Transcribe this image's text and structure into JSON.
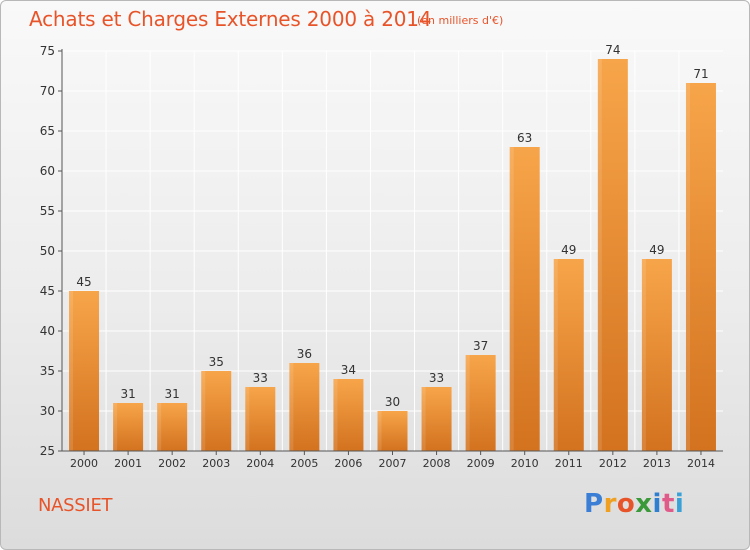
{
  "header": {
    "title": "Achats et Charges Externes 2000 à 2014",
    "subtitle": "(en milliers d'€)"
  },
  "footer": {
    "town": "NASSIET",
    "logo_text": "Proxiti",
    "logo_colors": [
      "#3a7fd5",
      "#f0a020",
      "#e8542a",
      "#3a9a3a",
      "#2f7fd0",
      "#e05b8a",
      "#3aa0d8"
    ]
  },
  "colors": {
    "accent": "#e8542a",
    "bar_top": "#f7a54a",
    "bar_bottom": "#d3721f",
    "axis": "#555555",
    "grid": "#ffffff"
  },
  "chart_data": {
    "type": "bar",
    "categories": [
      "2000",
      "2001",
      "2002",
      "2003",
      "2004",
      "2005",
      "2006",
      "2007",
      "2008",
      "2009",
      "2010",
      "2011",
      "2012",
      "2013",
      "2014"
    ],
    "values": [
      45,
      31,
      31,
      35,
      33,
      36,
      34,
      30,
      33,
      37,
      63,
      49,
      74,
      49,
      71
    ],
    "ylim": [
      25,
      75
    ],
    "yticks": [
      25,
      30,
      35,
      40,
      45,
      50,
      55,
      60,
      65,
      70,
      75
    ],
    "grid": true,
    "data_labels": true
  }
}
